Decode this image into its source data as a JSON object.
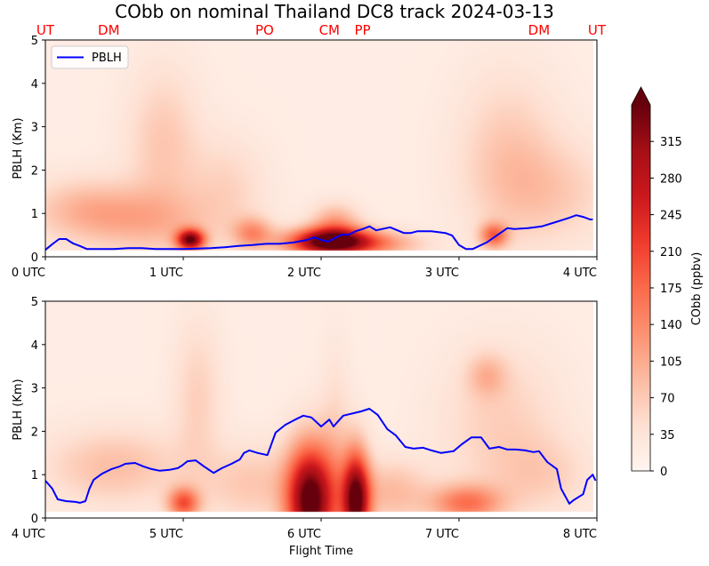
{
  "chart_data": {
    "type": "heatmap",
    "title": "CObb on nominal Thailand DC8 track 2024-03-13",
    "xlabel": "Flight Time",
    "ylabel": "PBLH (Km)",
    "ylim": [
      0,
      5
    ],
    "yticks": [
      "0",
      "1",
      "2",
      "3",
      "4",
      "5"
    ],
    "min_altitude_km": 0.16,
    "colorbar": {
      "label": "CObb (ppbv)",
      "colormap": [
        "#fff5f0",
        "#fee0d2",
        "#fcbba1",
        "#fc9272",
        "#fb6a4a",
        "#ef3b2c",
        "#cb181d",
        "#a50f15",
        "#67000d"
      ],
      "range": [
        0,
        350
      ],
      "ticks": [
        "0",
        "35",
        "70",
        "105",
        "140",
        "175",
        "210",
        "245",
        "280",
        "315"
      ],
      "extend": "max"
    },
    "legend": {
      "position": "top-left",
      "entries": [
        {
          "name": "PBLH",
          "color": "#0000ff"
        }
      ]
    },
    "stations": [
      {
        "label": "UT",
        "t": 0.0
      },
      {
        "label": "DM",
        "t": 0.46
      },
      {
        "label": "PO",
        "t": 1.59
      },
      {
        "label": "CM",
        "t": 2.06
      },
      {
        "label": "PP",
        "t": 2.3
      },
      {
        "label": "DM",
        "t": 3.58
      },
      {
        "label": "UT",
        "t": 4.0
      }
    ],
    "station_color": "#ff0000",
    "panels": [
      {
        "xlim": [
          0,
          4
        ],
        "xticks": [
          {
            "t": 0,
            "label": "0 UTC"
          },
          {
            "t": 1,
            "label": "1 UTC"
          },
          {
            "t": 2,
            "label": "2 UTC"
          },
          {
            "t": 3,
            "label": "3 UTC"
          },
          {
            "t": 4,
            "label": "4 UTC"
          }
        ],
        "pblh": {
          "name": "PBLH",
          "t": [
            0,
            0.05,
            0.1,
            0.15,
            0.2,
            0.25,
            0.3,
            0.5,
            0.6,
            0.7,
            0.8,
            1.0,
            1.2,
            1.3,
            1.4,
            1.5,
            1.6,
            1.7,
            1.8,
            1.9,
            1.95,
            2.0,
            2.05,
            2.1,
            2.15,
            2.2,
            2.25,
            2.3,
            2.35,
            2.4,
            2.5,
            2.6,
            2.65,
            2.7,
            2.8,
            2.9,
            2.95,
            3.0,
            3.05,
            3.1,
            3.2,
            3.3,
            3.35,
            3.4,
            3.5,
            3.6,
            3.7,
            3.8,
            3.85,
            3.9,
            3.95,
            3.97
          ],
          "km": [
            0.16,
            0.29,
            0.41,
            0.41,
            0.31,
            0.25,
            0.18,
            0.18,
            0.2,
            0.2,
            0.18,
            0.18,
            0.2,
            0.22,
            0.25,
            0.27,
            0.3,
            0.3,
            0.33,
            0.39,
            0.45,
            0.39,
            0.35,
            0.43,
            0.51,
            0.51,
            0.59,
            0.64,
            0.7,
            0.61,
            0.68,
            0.55,
            0.55,
            0.59,
            0.59,
            0.55,
            0.49,
            0.27,
            0.18,
            0.18,
            0.33,
            0.55,
            0.66,
            0.64,
            0.66,
            0.7,
            0.8,
            0.9,
            0.96,
            0.92,
            0.86,
            0.86
          ]
        },
        "field_base": 18,
        "field_blobs": [
          {
            "t": 0.3,
            "z": 1.1,
            "st": 0.3,
            "sz": 0.5,
            "v": 70
          },
          {
            "t": 0.85,
            "z": 2.6,
            "st": 0.18,
            "sz": 1.2,
            "v": 55
          },
          {
            "t": 0.75,
            "z": 0.8,
            "st": 0.35,
            "sz": 0.5,
            "v": 60
          },
          {
            "t": 1.05,
            "z": 0.4,
            "st": 0.07,
            "sz": 0.17,
            "v": 300
          },
          {
            "t": 1.5,
            "z": 0.55,
            "st": 0.1,
            "sz": 0.25,
            "v": 110
          },
          {
            "t": 1.3,
            "z": 1.6,
            "st": 0.2,
            "sz": 0.8,
            "v": 40
          },
          {
            "t": 2.08,
            "z": 0.35,
            "st": 0.22,
            "sz": 0.22,
            "v": 380
          },
          {
            "t": 2.1,
            "z": 0.8,
            "st": 0.12,
            "sz": 0.3,
            "v": 90
          },
          {
            "t": 2.5,
            "z": 0.3,
            "st": 0.2,
            "sz": 0.2,
            "v": 60
          },
          {
            "t": 3.25,
            "z": 0.5,
            "st": 0.07,
            "sz": 0.2,
            "v": 150
          },
          {
            "t": 3.35,
            "z": 2.3,
            "st": 0.25,
            "sz": 1.3,
            "v": 55
          },
          {
            "t": 3.7,
            "z": 1.5,
            "st": 0.3,
            "sz": 0.8,
            "v": 45
          }
        ]
      },
      {
        "xlim": [
          4,
          8
        ],
        "xticks": [
          {
            "t": 4,
            "label": "4 UTC"
          },
          {
            "t": 5,
            "label": "5 UTC"
          },
          {
            "t": 6,
            "label": "6 UTC"
          },
          {
            "t": 7,
            "label": "7 UTC"
          },
          {
            "t": 8,
            "label": "8 UTC"
          }
        ],
        "pblh": {
          "name": "PBLH",
          "t": [
            4.0,
            4.05,
            4.09,
            4.15,
            4.22,
            4.25,
            4.29,
            4.32,
            4.35,
            4.41,
            4.48,
            4.54,
            4.58,
            4.65,
            4.71,
            4.77,
            4.83,
            4.9,
            4.96,
            4.99,
            5.03,
            5.09,
            5.15,
            5.22,
            5.28,
            5.35,
            5.41,
            5.44,
            5.48,
            5.54,
            5.61,
            5.67,
            5.74,
            5.8,
            5.87,
            5.93,
            6.0,
            6.06,
            6.09,
            6.16,
            6.29,
            6.35,
            6.41,
            6.48,
            6.54,
            6.61,
            6.67,
            6.74,
            6.8,
            6.87,
            6.96,
            7.02,
            7.09,
            7.16,
            7.22,
            7.29,
            7.35,
            7.41,
            7.48,
            7.54,
            7.58,
            7.64,
            7.71,
            7.74,
            7.8,
            7.83,
            7.9,
            7.93,
            7.97,
            7.99
          ],
          "km": [
            0.86,
            0.68,
            0.43,
            0.39,
            0.37,
            0.35,
            0.39,
            0.68,
            0.88,
            1.02,
            1.13,
            1.19,
            1.25,
            1.27,
            1.19,
            1.13,
            1.09,
            1.11,
            1.15,
            1.21,
            1.31,
            1.33,
            1.19,
            1.04,
            1.15,
            1.25,
            1.35,
            1.5,
            1.56,
            1.5,
            1.45,
            1.97,
            2.15,
            2.25,
            2.36,
            2.32,
            2.11,
            2.27,
            2.11,
            2.36,
            2.46,
            2.52,
            2.38,
            2.05,
            1.91,
            1.64,
            1.6,
            1.62,
            1.56,
            1.5,
            1.54,
            1.7,
            1.86,
            1.86,
            1.6,
            1.64,
            1.58,
            1.58,
            1.56,
            1.52,
            1.54,
            1.29,
            1.13,
            0.68,
            0.33,
            0.41,
            0.55,
            0.88,
            1.0,
            0.86
          ]
        },
        "field_base": 18,
        "field_blobs": [
          {
            "t": 4.5,
            "z": 1.2,
            "st": 0.35,
            "sz": 0.6,
            "v": 65
          },
          {
            "t": 5.1,
            "z": 2.8,
            "st": 0.12,
            "sz": 1.2,
            "v": 45
          },
          {
            "t": 5.0,
            "z": 0.35,
            "st": 0.08,
            "sz": 0.25,
            "v": 170
          },
          {
            "t": 5.5,
            "z": 0.8,
            "st": 0.25,
            "sz": 0.6,
            "v": 55
          },
          {
            "t": 5.92,
            "z": 0.4,
            "st": 0.12,
            "sz": 0.9,
            "v": 350
          },
          {
            "t": 6.25,
            "z": 0.4,
            "st": 0.07,
            "sz": 0.8,
            "v": 330
          },
          {
            "t": 6.1,
            "z": 1.5,
            "st": 0.08,
            "sz": 1.5,
            "v": 40
          },
          {
            "t": 6.5,
            "z": 0.6,
            "st": 0.2,
            "sz": 0.5,
            "v": 70
          },
          {
            "t": 7.05,
            "z": 0.35,
            "st": 0.18,
            "sz": 0.3,
            "v": 140
          },
          {
            "t": 7.2,
            "z": 3.3,
            "st": 0.1,
            "sz": 0.35,
            "v": 60
          },
          {
            "t": 7.3,
            "z": 2.2,
            "st": 0.3,
            "sz": 1.2,
            "v": 45
          },
          {
            "t": 7.6,
            "z": 1.0,
            "st": 0.25,
            "sz": 0.6,
            "v": 40
          }
        ]
      }
    ]
  }
}
